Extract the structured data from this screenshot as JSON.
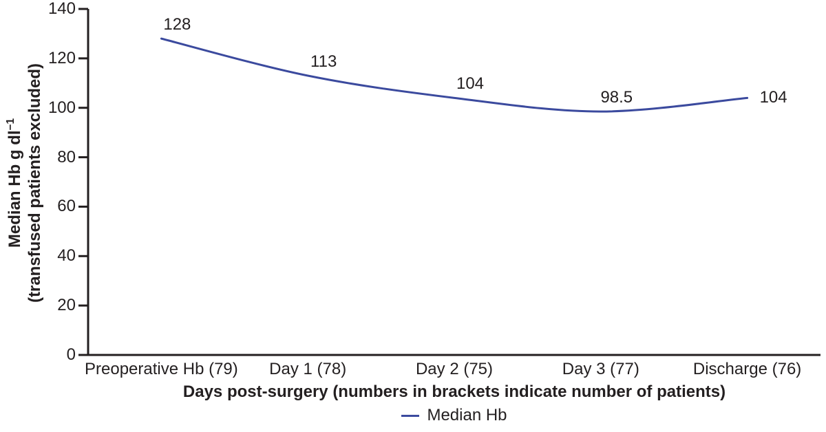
{
  "chart_data": {
    "type": "line",
    "title": "",
    "categories": [
      "Preoperative Hb (79)",
      "Day 1 (78)",
      "Day 2 (75)",
      "Day 3 (77)",
      "Discharge (76)"
    ],
    "series": [
      {
        "name": "Median Hb",
        "values": [
          128,
          113,
          104,
          98.5,
          104
        ],
        "data_labels": [
          "128",
          "113",
          "104",
          "98.5",
          "104"
        ],
        "color": "#3B4A9E",
        "smoothed": true
      }
    ],
    "xlabel": "Days post-surgery (numbers in brackets indicate number of patients)",
    "ylabel_line1_main": "Median Hb g dl",
    "ylabel_line1_sup": "−1",
    "ylabel_line2": "(transfused patients excluded)",
    "ylim": [
      0,
      140
    ],
    "yticks": [
      0,
      20,
      40,
      60,
      80,
      100,
      120,
      140
    ],
    "grid": false,
    "legend": {
      "position": "bottom-center",
      "entries": [
        {
          "label": "Median Hb",
          "marker": "line",
          "marker_color": "#3B4A9E"
        }
      ]
    },
    "axis_color": "#231F20",
    "text_color": "#231F20",
    "background": "#FFFFFF"
  }
}
